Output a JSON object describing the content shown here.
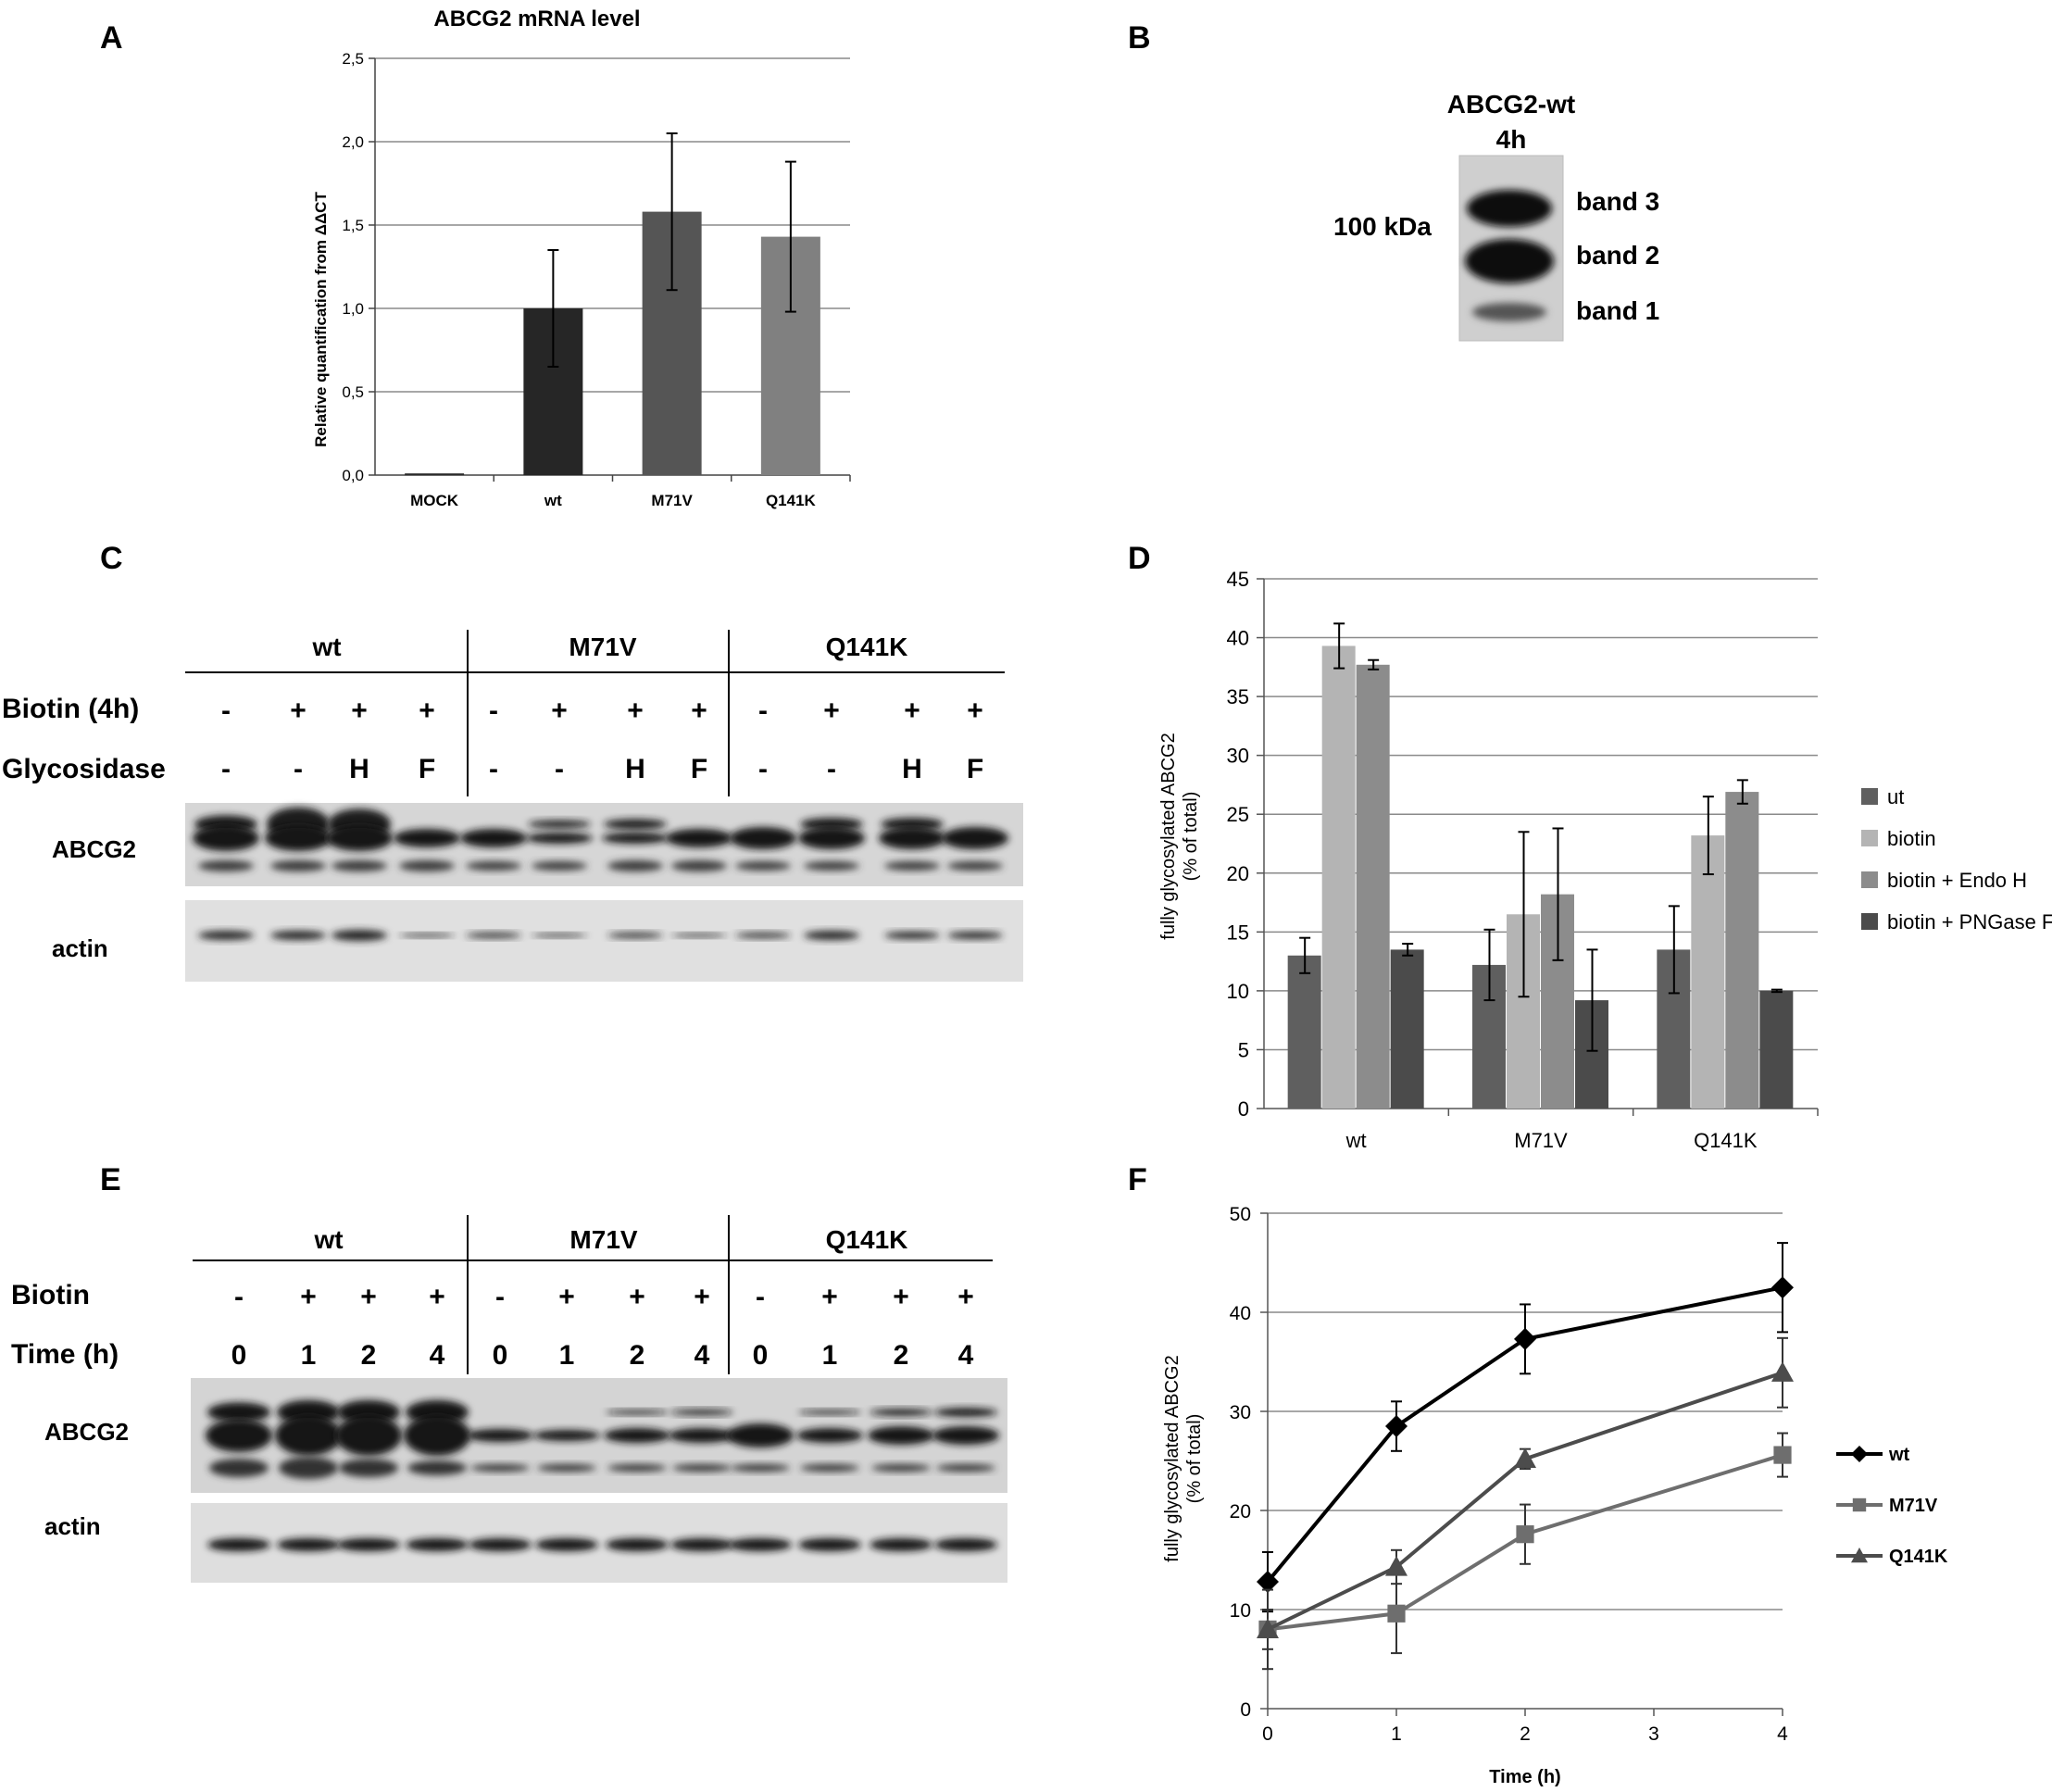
{
  "panels": {
    "A": {
      "letter": "A",
      "chart_data": {
        "type": "bar",
        "title": "ABCG2 mRNA level",
        "ylabel": "Relative quantification from ΔΔCT",
        "xlabel": "",
        "ylim": [
          0,
          2.5
        ],
        "yticks": [
          "0,0",
          "0,5",
          "1,0",
          "1,5",
          "2,0",
          "2,5"
        ],
        "ytick_values": [
          0,
          0.5,
          1.0,
          1.5,
          2.0,
          2.5
        ],
        "categories": [
          "MOCK",
          "wt",
          "M71V",
          "Q141K"
        ],
        "values": [
          0.01,
          1.0,
          1.58,
          1.43
        ],
        "errors": [
          0.0,
          0.35,
          0.47,
          0.45
        ],
        "bar_colors": [
          "#2a2a2a",
          "#262626",
          "#555555",
          "#808080"
        ],
        "grid": true
      }
    },
    "B": {
      "letter": "B",
      "title_line1": "ABCG2-wt",
      "title_line2": "4h",
      "marker": "100 kDa",
      "bands": [
        "band 3",
        "band 2",
        "band 1"
      ]
    },
    "C": {
      "letter": "C",
      "groups": [
        "wt",
        "M71V",
        "Q141K"
      ],
      "row1_label": "Biotin (4h)",
      "row1_values": [
        "-",
        "+",
        "+",
        "+",
        "-",
        "+",
        "+",
        "+",
        "-",
        "+",
        "+",
        "+"
      ],
      "row2_label": "Glycosidase",
      "row2_values": [
        "-",
        "-",
        "H",
        "F",
        "-",
        "-",
        "H",
        "F",
        "-",
        "-",
        "H",
        "F"
      ],
      "blot1_label": "ABCG2",
      "blot2_label": "actin"
    },
    "D": {
      "letter": "D",
      "chart_data": {
        "type": "bar",
        "title": "",
        "ylabel": "fully glycosylated ABCG2\n(% of total)",
        "xlabel": "",
        "ylim": [
          0,
          45
        ],
        "yticks": [
          "0",
          "5",
          "10",
          "15",
          "20",
          "25",
          "30",
          "35",
          "40",
          "45"
        ],
        "ytick_values": [
          0,
          5,
          10,
          15,
          20,
          25,
          30,
          35,
          40,
          45
        ],
        "categories": [
          "wt",
          "M71V",
          "Q141K"
        ],
        "series": [
          {
            "name": "ut",
            "values": [
              13.0,
              12.2,
              13.5
            ],
            "errors": [
              1.5,
              3.0,
              3.7
            ],
            "color": "#5f5f5f"
          },
          {
            "name": "biotin",
            "values": [
              39.3,
              16.5,
              23.2
            ],
            "errors": [
              1.9,
              7.0,
              3.3
            ],
            "color": "#b4b4b4"
          },
          {
            "name": "biotin + Endo H",
            "values": [
              37.7,
              18.2,
              26.9
            ],
            "errors": [
              0.4,
              5.6,
              1.0
            ],
            "color": "#8c8c8c"
          },
          {
            "name": "biotin + PNGase F",
            "values": [
              13.5,
              9.2,
              10.0
            ],
            "errors": [
              0.5,
              4.3,
              0.1
            ],
            "color": "#4b4b4b"
          }
        ],
        "legend": "right",
        "grid": true
      }
    },
    "E": {
      "letter": "E",
      "groups": [
        "wt",
        "M71V",
        "Q141K"
      ],
      "row1_label": "Biotin",
      "row1_values": [
        "-",
        "+",
        "+",
        "+",
        "-",
        "+",
        "+",
        "+",
        "-",
        "+",
        "+",
        "+"
      ],
      "row2_label": "Time (h)",
      "row2_values": [
        "0",
        "1",
        "2",
        "4",
        "0",
        "1",
        "2",
        "4",
        "0",
        "1",
        "2",
        "4"
      ],
      "blot1_label": "ABCG2",
      "blot2_label": "actin"
    },
    "F": {
      "letter": "F",
      "chart_data": {
        "type": "line",
        "title": "",
        "ylabel": "fully glycosylated ABCG2\n(% of total)",
        "xlabel": "Time (h)",
        "xlim": [
          0,
          4
        ],
        "ylim": [
          0,
          50
        ],
        "xticks": [
          "0",
          "1",
          "2",
          "3",
          "4"
        ],
        "xtick_values": [
          0,
          1,
          2,
          3,
          4
        ],
        "yticks": [
          "0",
          "10",
          "20",
          "30",
          "40",
          "50"
        ],
        "ytick_values": [
          0,
          10,
          20,
          30,
          40,
          50
        ],
        "x": [
          0,
          1,
          2,
          4
        ],
        "series": [
          {
            "name": "wt",
            "values": [
              12.8,
              28.5,
              37.3,
              42.5
            ],
            "errors": [
              3.0,
              2.5,
              3.5,
              4.5
            ],
            "color": "#000000",
            "marker": "diamond"
          },
          {
            "name": "M71V",
            "values": [
              8.0,
              9.6,
              17.6,
              25.6
            ],
            "errors": [
              2.0,
              4.0,
              3.0,
              2.2
            ],
            "color": "#6e6e6e",
            "marker": "square"
          },
          {
            "name": "Q141K",
            "values": [
              8.0,
              14.3,
              25.2,
              33.9
            ],
            "errors": [
              4.0,
              1.7,
              1.0,
              3.5
            ],
            "color": "#4c4c4c",
            "marker": "triangle"
          }
        ],
        "legend": "right",
        "grid": true
      }
    }
  }
}
